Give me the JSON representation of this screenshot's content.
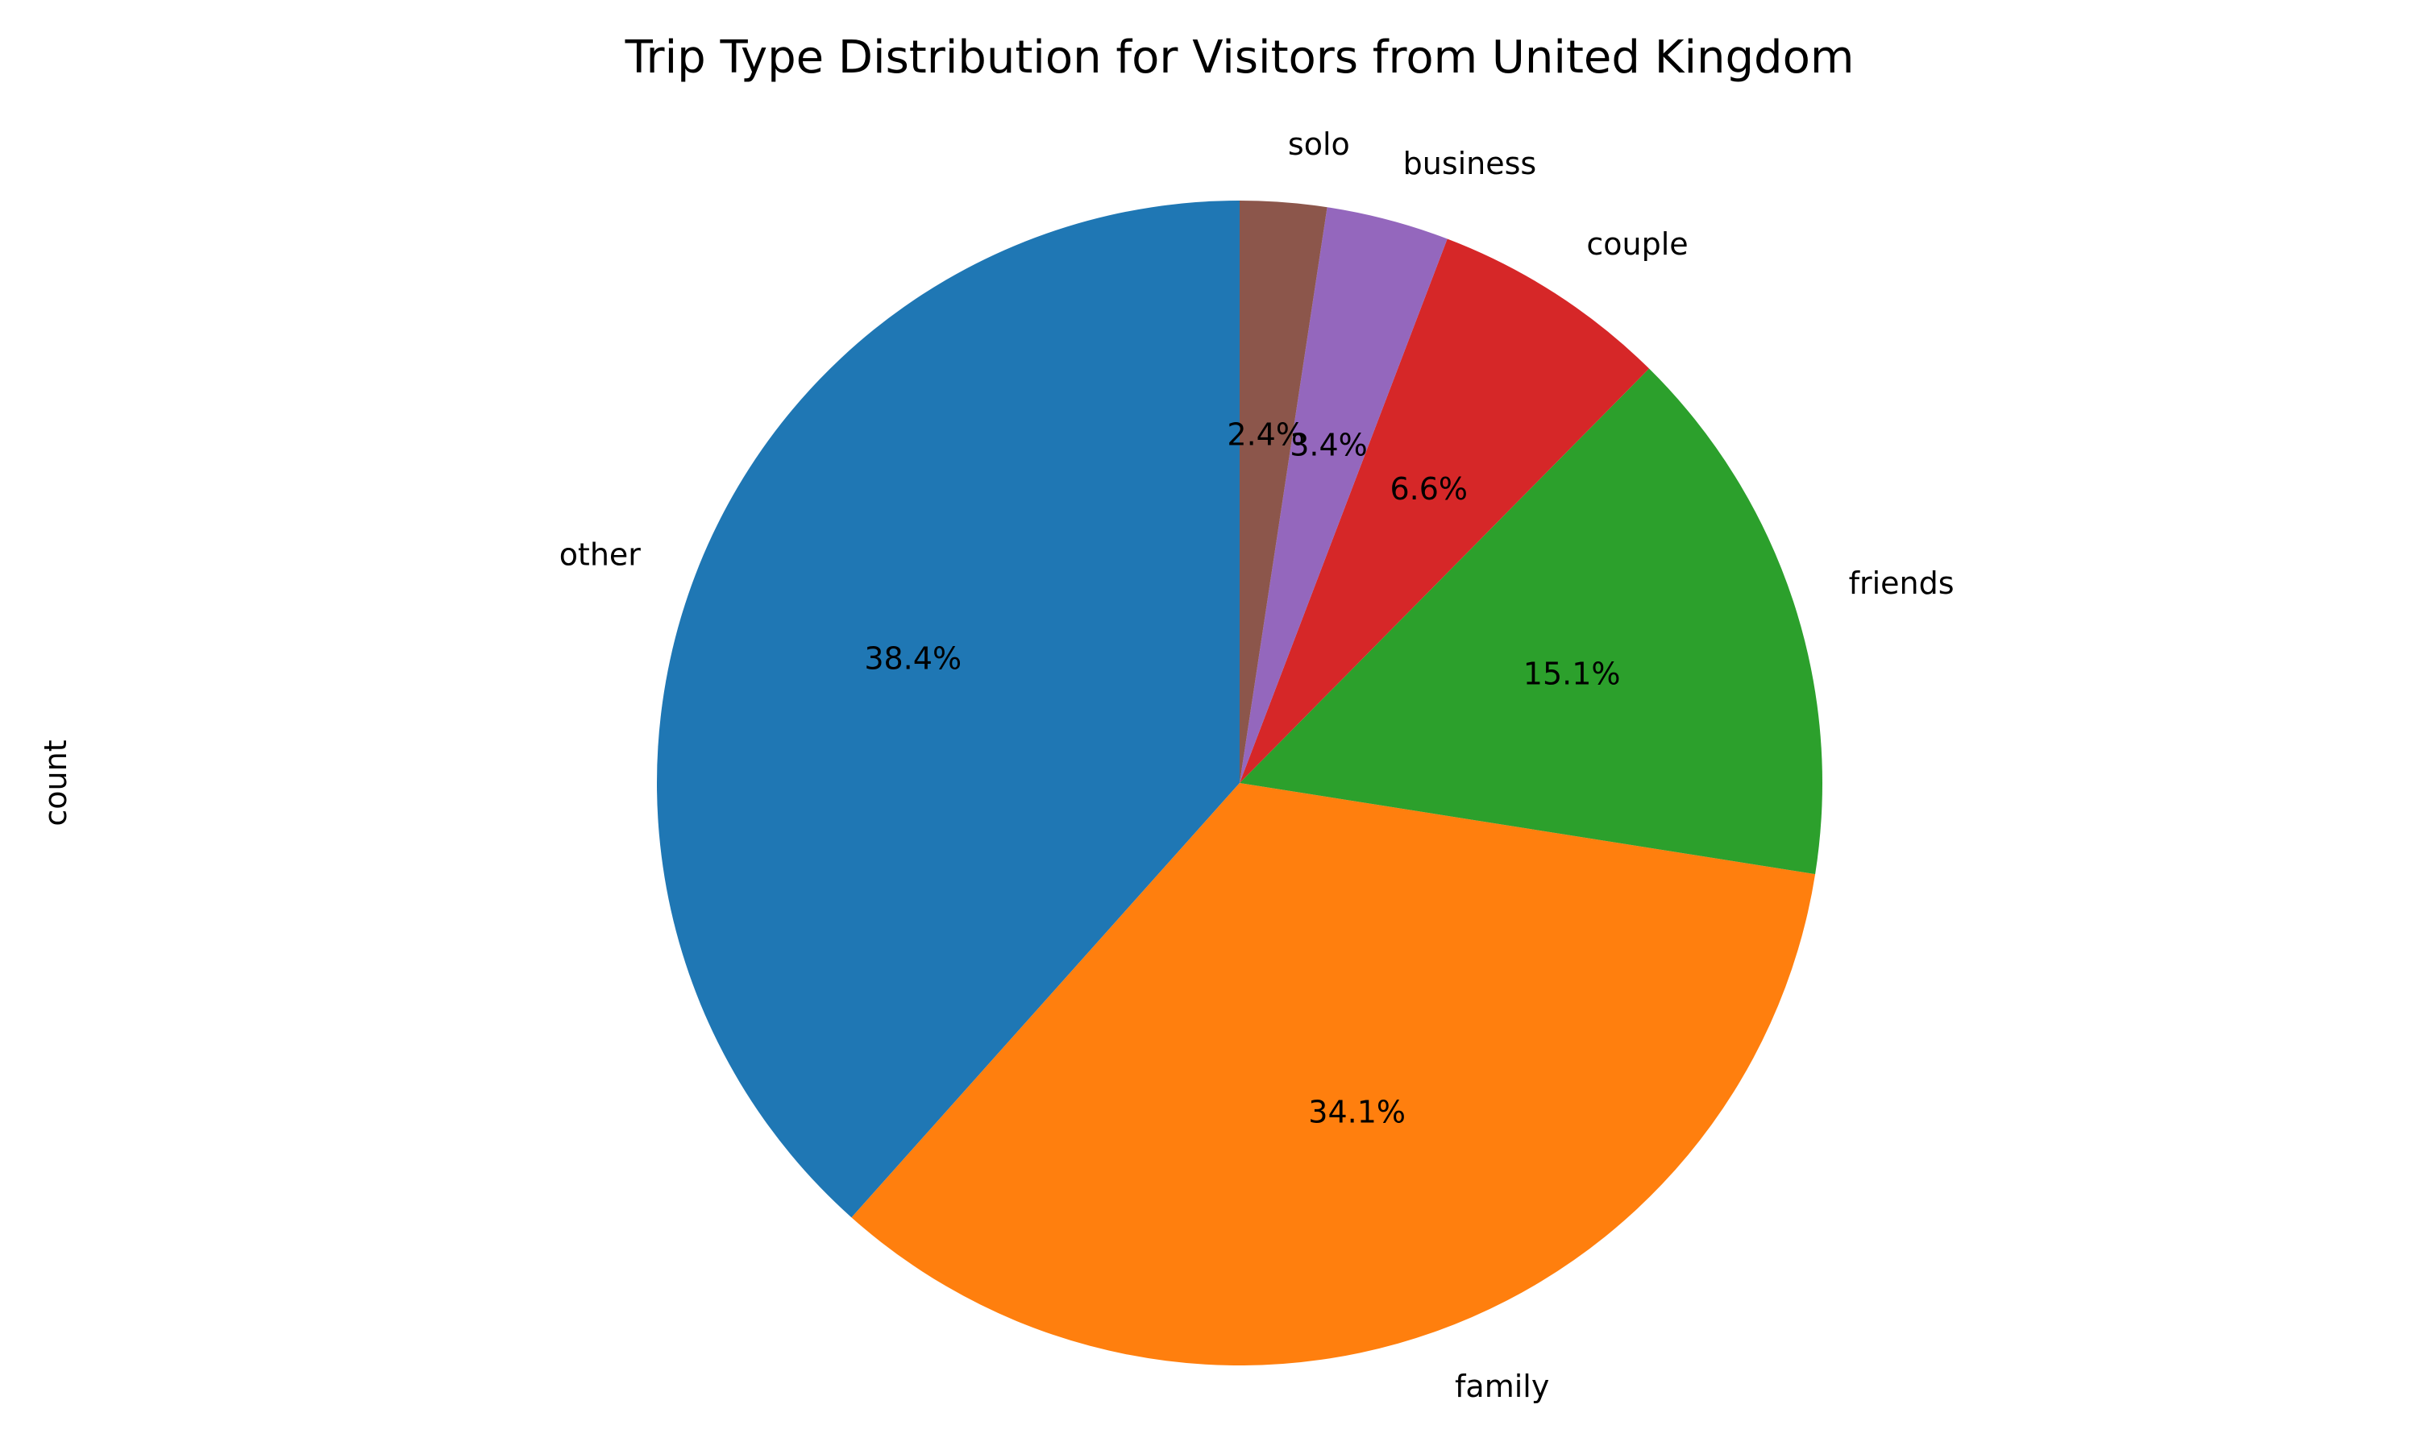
{
  "chart_data": {
    "type": "pie",
    "title": "Trip Type Distribution for Visitors from United Kingdom",
    "ylabel": "count",
    "start_angle_deg": 90,
    "direction": "counterclockwise",
    "slices": [
      {
        "label": "other",
        "percent": 38.4,
        "percent_label": "38.4%",
        "color": "#1f77b4"
      },
      {
        "label": "family",
        "percent": 34.1,
        "percent_label": "34.1%",
        "color": "#ff7f0e"
      },
      {
        "label": "friends",
        "percent": 15.1,
        "percent_label": "15.1%",
        "color": "#2ca02c"
      },
      {
        "label": "couple",
        "percent": 6.6,
        "percent_label": "6.6%",
        "color": "#d62728"
      },
      {
        "label": "business",
        "percent": 3.4,
        "percent_label": "3.4%",
        "color": "#9467bd"
      },
      {
        "label": "solo",
        "percent": 2.4,
        "percent_label": "2.4%",
        "color": "#8c564b"
      }
    ]
  }
}
